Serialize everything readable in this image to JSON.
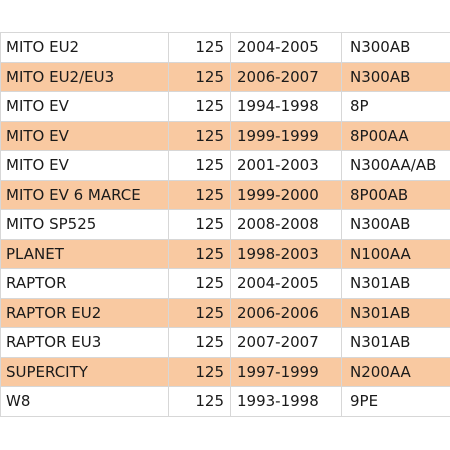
{
  "table": {
    "rows": [
      {
        "model": "MITO EU2",
        "cc": "125",
        "years": "2004-2005",
        "code": "N300AB",
        "highlight": false
      },
      {
        "model": "MITO EU2/EU3",
        "cc": "125",
        "years": "2006-2007",
        "code": "N300AB",
        "highlight": true
      },
      {
        "model": "MITO EV",
        "cc": "125",
        "years": "1994-1998",
        "code": "8P",
        "highlight": false
      },
      {
        "model": "MITO EV",
        "cc": "125",
        "years": "1999-1999",
        "code": "8P00AA",
        "highlight": true
      },
      {
        "model": "MITO EV",
        "cc": "125",
        "years": "2001-2003",
        "code": "N300AA/AB",
        "highlight": false
      },
      {
        "model": "MITO EV 6 MARCE",
        "cc": "125",
        "years": "1999-2000",
        "code": "8P00AB",
        "highlight": true
      },
      {
        "model": "MITO SP525",
        "cc": "125",
        "years": "2008-2008",
        "code": "N300AB",
        "highlight": false
      },
      {
        "model": "PLANET",
        "cc": "125",
        "years": "1998-2003",
        "code": "N100AA",
        "highlight": true
      },
      {
        "model": "RAPTOR",
        "cc": "125",
        "years": "2004-2005",
        "code": "N301AB",
        "highlight": false
      },
      {
        "model": "RAPTOR EU2",
        "cc": "125",
        "years": "2006-2006",
        "code": "N301AB",
        "highlight": true
      },
      {
        "model": "RAPTOR EU3",
        "cc": "125",
        "years": "2007-2007",
        "code": "N301AB",
        "highlight": false
      },
      {
        "model": "SUPERCITY",
        "cc": "125",
        "years": "1997-1999",
        "code": "N200AA",
        "highlight": true
      },
      {
        "model": "W8",
        "cc": "125",
        "years": "1993-1998",
        "code": "9PE",
        "highlight": false
      }
    ]
  },
  "colors": {
    "highlight_row": "#f9c9a1",
    "grid_line": "#d7d7d7",
    "text": "#1a1a1a"
  }
}
